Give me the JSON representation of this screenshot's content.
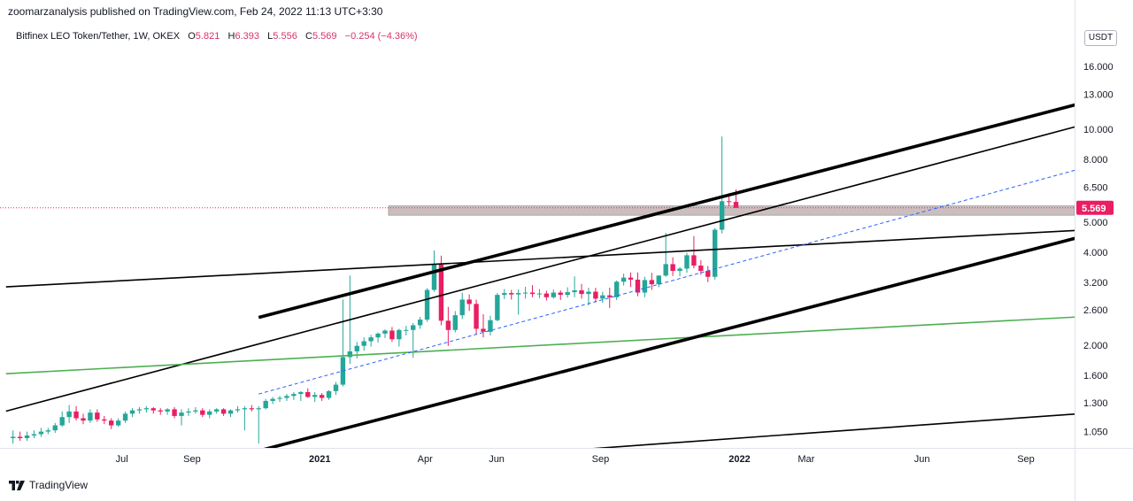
{
  "publisher_line": "zoomarzanalysis published on TradingView.com, Feb 24, 2022 11:13 UTC+3:30",
  "legend": {
    "symbol": "Bitfinex LEO Token/Tether, 1W, OKEX",
    "open_label": "O",
    "open": "5.821",
    "high_label": "H",
    "high": "6.393",
    "low_label": "L",
    "low": "5.556",
    "close_label": "C",
    "close": "5.569",
    "change": "−0.254 (−4.36%)"
  },
  "currency": "USDT",
  "footer_brand": "TradingView",
  "colors": {
    "up": "#26a69a",
    "down": "#e91e63",
    "green_line": "#4caf50",
    "dashed_line": "#2962ff",
    "zone": "#b8a9a9",
    "price_tag": "#e91e63"
  },
  "chart_data": {
    "type": "candlestick",
    "y_scale": "log",
    "ylim": [
      0.93,
      21.8
    ],
    "y_ticks": [
      "16.000",
      "13.000",
      "10.000",
      "8.000",
      "6.500",
      "5.000",
      "4.000",
      "3.200",
      "2.600",
      "2.000",
      "1.600",
      "1.300",
      "1.050"
    ],
    "x_ticks": [
      "Jul",
      "Sep",
      "2021",
      "Apr",
      "Jun",
      "Sep",
      "2022",
      "Mar",
      "Jun",
      "Sep"
    ],
    "x_ticks_bold": [
      "2021",
      "2022"
    ],
    "last_price": "5.569",
    "resistance_zone": [
      5.27,
      5.65
    ],
    "candles": [
      {
        "o": 1.0,
        "h": 1.06,
        "l": 0.96,
        "c": 1.01
      },
      {
        "o": 1.01,
        "h": 1.05,
        "l": 0.98,
        "c": 1.0
      },
      {
        "o": 1.0,
        "h": 1.05,
        "l": 0.98,
        "c": 1.02
      },
      {
        "o": 1.02,
        "h": 1.06,
        "l": 1.0,
        "c": 1.03
      },
      {
        "o": 1.03,
        "h": 1.08,
        "l": 1.01,
        "c": 1.05
      },
      {
        "o": 1.05,
        "h": 1.08,
        "l": 1.03,
        "c": 1.06
      },
      {
        "o": 1.06,
        "h": 1.12,
        "l": 1.04,
        "c": 1.1
      },
      {
        "o": 1.1,
        "h": 1.22,
        "l": 1.09,
        "c": 1.17
      },
      {
        "o": 1.17,
        "h": 1.28,
        "l": 1.12,
        "c": 1.22
      },
      {
        "o": 1.22,
        "h": 1.27,
        "l": 1.14,
        "c": 1.16
      },
      {
        "o": 1.16,
        "h": 1.2,
        "l": 1.11,
        "c": 1.14
      },
      {
        "o": 1.14,
        "h": 1.24,
        "l": 1.12,
        "c": 1.21
      },
      {
        "o": 1.21,
        "h": 1.24,
        "l": 1.13,
        "c": 1.15
      },
      {
        "o": 1.15,
        "h": 1.18,
        "l": 1.11,
        "c": 1.14
      },
      {
        "o": 1.14,
        "h": 1.16,
        "l": 1.07,
        "c": 1.1
      },
      {
        "o": 1.1,
        "h": 1.16,
        "l": 1.09,
        "c": 1.14
      },
      {
        "o": 1.14,
        "h": 1.22,
        "l": 1.12,
        "c": 1.2
      },
      {
        "o": 1.2,
        "h": 1.25,
        "l": 1.17,
        "c": 1.23
      },
      {
        "o": 1.23,
        "h": 1.26,
        "l": 1.2,
        "c": 1.24
      },
      {
        "o": 1.24,
        "h": 1.27,
        "l": 1.21,
        "c": 1.25
      },
      {
        "o": 1.25,
        "h": 1.26,
        "l": 1.2,
        "c": 1.23
      },
      {
        "o": 1.23,
        "h": 1.25,
        "l": 1.19,
        "c": 1.22
      },
      {
        "o": 1.22,
        "h": 1.25,
        "l": 1.19,
        "c": 1.24
      },
      {
        "o": 1.24,
        "h": 1.26,
        "l": 1.16,
        "c": 1.18
      },
      {
        "o": 1.18,
        "h": 1.24,
        "l": 1.1,
        "c": 1.21
      },
      {
        "o": 1.21,
        "h": 1.25,
        "l": 1.18,
        "c": 1.22
      },
      {
        "o": 1.22,
        "h": 1.26,
        "l": 1.2,
        "c": 1.23
      },
      {
        "o": 1.23,
        "h": 1.25,
        "l": 1.17,
        "c": 1.19
      },
      {
        "o": 1.19,
        "h": 1.24,
        "l": 1.16,
        "c": 1.22
      },
      {
        "o": 1.22,
        "h": 1.25,
        "l": 1.2,
        "c": 1.24
      },
      {
        "o": 1.24,
        "h": 1.25,
        "l": 1.18,
        "c": 1.2
      },
      {
        "o": 1.2,
        "h": 1.24,
        "l": 1.17,
        "c": 1.23
      },
      {
        "o": 1.23,
        "h": 1.27,
        "l": 1.21,
        "c": 1.24
      },
      {
        "o": 1.24,
        "h": 1.27,
        "l": 1.06,
        "c": 1.25
      },
      {
        "o": 1.25,
        "h": 1.28,
        "l": 1.22,
        "c": 1.24
      },
      {
        "o": 1.24,
        "h": 1.27,
        "l": 0.96,
        "c": 1.25
      },
      {
        "o": 1.25,
        "h": 1.34,
        "l": 1.24,
        "c": 1.32
      },
      {
        "o": 1.32,
        "h": 1.36,
        "l": 1.29,
        "c": 1.34
      },
      {
        "o": 1.34,
        "h": 1.37,
        "l": 1.31,
        "c": 1.35
      },
      {
        "o": 1.35,
        "h": 1.39,
        "l": 1.32,
        "c": 1.37
      },
      {
        "o": 1.37,
        "h": 1.41,
        "l": 1.33,
        "c": 1.39
      },
      {
        "o": 1.39,
        "h": 1.42,
        "l": 1.32,
        "c": 1.41
      },
      {
        "o": 1.41,
        "h": 1.45,
        "l": 1.35,
        "c": 1.36
      },
      {
        "o": 1.36,
        "h": 1.41,
        "l": 1.31,
        "c": 1.38
      },
      {
        "o": 1.38,
        "h": 1.4,
        "l": 1.32,
        "c": 1.35
      },
      {
        "o": 1.35,
        "h": 1.43,
        "l": 1.33,
        "c": 1.42
      },
      {
        "o": 1.42,
        "h": 1.52,
        "l": 1.38,
        "c": 1.49
      },
      {
        "o": 1.49,
        "h": 2.81,
        "l": 1.47,
        "c": 1.83
      },
      {
        "o": 1.83,
        "h": 3.36,
        "l": 1.74,
        "c": 1.91
      },
      {
        "o": 1.91,
        "h": 2.05,
        "l": 1.81,
        "c": 1.99
      },
      {
        "o": 1.99,
        "h": 2.12,
        "l": 1.92,
        "c": 2.06
      },
      {
        "o": 2.06,
        "h": 2.16,
        "l": 1.98,
        "c": 2.12
      },
      {
        "o": 2.12,
        "h": 2.2,
        "l": 2.04,
        "c": 2.18
      },
      {
        "o": 2.18,
        "h": 2.25,
        "l": 2.11,
        "c": 2.23
      },
      {
        "o": 2.23,
        "h": 2.29,
        "l": 2.05,
        "c": 2.09
      },
      {
        "o": 2.09,
        "h": 2.26,
        "l": 1.98,
        "c": 2.24
      },
      {
        "o": 2.24,
        "h": 2.31,
        "l": 2.15,
        "c": 2.24
      },
      {
        "o": 2.24,
        "h": 2.36,
        "l": 1.82,
        "c": 2.32
      },
      {
        "o": 2.32,
        "h": 2.47,
        "l": 2.26,
        "c": 2.42
      },
      {
        "o": 2.42,
        "h": 3.06,
        "l": 2.38,
        "c": 3.02
      },
      {
        "o": 3.02,
        "h": 4.05,
        "l": 2.98,
        "c": 3.65
      },
      {
        "o": 3.65,
        "h": 3.9,
        "l": 2.32,
        "c": 2.4
      },
      {
        "o": 2.4,
        "h": 2.66,
        "l": 1.99,
        "c": 2.24
      },
      {
        "o": 2.24,
        "h": 2.58,
        "l": 2.2,
        "c": 2.5
      },
      {
        "o": 2.5,
        "h": 2.96,
        "l": 2.43,
        "c": 2.81
      },
      {
        "o": 2.81,
        "h": 2.92,
        "l": 2.58,
        "c": 2.72
      },
      {
        "o": 2.72,
        "h": 2.81,
        "l": 2.16,
        "c": 2.26
      },
      {
        "o": 2.26,
        "h": 2.52,
        "l": 2.12,
        "c": 2.21
      },
      {
        "o": 2.21,
        "h": 2.49,
        "l": 2.15,
        "c": 2.41
      },
      {
        "o": 2.41,
        "h": 2.95,
        "l": 2.39,
        "c": 2.91
      },
      {
        "o": 2.91,
        "h": 3.04,
        "l": 2.82,
        "c": 2.95
      },
      {
        "o": 2.95,
        "h": 3.02,
        "l": 2.81,
        "c": 2.92
      },
      {
        "o": 2.92,
        "h": 3.03,
        "l": 2.51,
        "c": 2.95
      },
      {
        "o": 2.95,
        "h": 3.09,
        "l": 2.83,
        "c": 2.96
      },
      {
        "o": 2.96,
        "h": 3.13,
        "l": 2.86,
        "c": 2.93
      },
      {
        "o": 2.93,
        "h": 3.04,
        "l": 2.84,
        "c": 2.94
      },
      {
        "o": 2.94,
        "h": 3.0,
        "l": 2.79,
        "c": 2.86
      },
      {
        "o": 2.86,
        "h": 3.03,
        "l": 2.83,
        "c": 2.96
      },
      {
        "o": 2.96,
        "h": 3.01,
        "l": 2.8,
        "c": 2.91
      },
      {
        "o": 2.91,
        "h": 3.08,
        "l": 2.85,
        "c": 2.97
      },
      {
        "o": 2.97,
        "h": 3.34,
        "l": 2.86,
        "c": 3.01
      },
      {
        "o": 3.01,
        "h": 3.16,
        "l": 2.83,
        "c": 2.93
      },
      {
        "o": 2.93,
        "h": 3.07,
        "l": 2.69,
        "c": 2.98
      },
      {
        "o": 2.98,
        "h": 3.07,
        "l": 2.75,
        "c": 2.83
      },
      {
        "o": 2.83,
        "h": 2.98,
        "l": 2.74,
        "c": 2.9
      },
      {
        "o": 2.9,
        "h": 3.07,
        "l": 2.64,
        "c": 2.86
      },
      {
        "o": 2.86,
        "h": 3.24,
        "l": 2.8,
        "c": 3.21
      },
      {
        "o": 3.21,
        "h": 3.41,
        "l": 3.12,
        "c": 3.31
      },
      {
        "o": 3.31,
        "h": 3.44,
        "l": 3.09,
        "c": 3.26
      },
      {
        "o": 3.26,
        "h": 3.44,
        "l": 2.88,
        "c": 2.96
      },
      {
        "o": 2.96,
        "h": 3.33,
        "l": 2.86,
        "c": 3.25
      },
      {
        "o": 3.25,
        "h": 3.43,
        "l": 3.02,
        "c": 3.15
      },
      {
        "o": 3.15,
        "h": 3.37,
        "l": 3.08,
        "c": 3.36
      },
      {
        "o": 3.36,
        "h": 4.62,
        "l": 3.33,
        "c": 3.66
      },
      {
        "o": 3.66,
        "h": 3.85,
        "l": 3.35,
        "c": 3.48
      },
      {
        "o": 3.48,
        "h": 3.58,
        "l": 3.34,
        "c": 3.54
      },
      {
        "o": 3.54,
        "h": 3.98,
        "l": 3.43,
        "c": 3.91
      },
      {
        "o": 3.91,
        "h": 4.51,
        "l": 3.55,
        "c": 3.62
      },
      {
        "o": 3.62,
        "h": 3.77,
        "l": 3.38,
        "c": 3.48
      },
      {
        "o": 3.48,
        "h": 3.61,
        "l": 3.2,
        "c": 3.33
      },
      {
        "o": 3.33,
        "h": 4.79,
        "l": 3.26,
        "c": 4.73
      },
      {
        "o": 4.73,
        "h": 9.48,
        "l": 4.6,
        "c": 5.85
      },
      {
        "o": 5.85,
        "h": 6.21,
        "l": 5.63,
        "c": 5.82
      },
      {
        "o": 5.821,
        "h": 6.393,
        "l": 5.556,
        "c": 5.569
      }
    ],
    "drawings": [
      {
        "kind": "trend",
        "style": "thin-black",
        "p1": [
          -1,
          1.223
        ],
        "p2": [
          206,
          21.8
        ]
      },
      {
        "kind": "trend",
        "style": "thin-black",
        "p1": [
          -1,
          0.676
        ],
        "p2": [
          206,
          1.47
        ]
      },
      {
        "kind": "trend",
        "style": "thin-black",
        "p1": [
          -1,
          3.09
        ],
        "p2": [
          206,
          5.47
        ]
      },
      {
        "kind": "trend",
        "style": "thin-green",
        "p1": [
          -1,
          1.617
        ],
        "p2": [
          206,
          2.87
        ]
      },
      {
        "kind": "trend",
        "style": "thick-black",
        "p1": [
          35,
          2.46
        ],
        "p2": [
          179,
          17.5
        ]
      },
      {
        "kind": "trend",
        "style": "thick-black",
        "p1": [
          35,
          0.91
        ],
        "p2": [
          179,
          6.47
        ]
      },
      {
        "kind": "trend",
        "style": "dashed-blue",
        "p1": [
          35,
          1.39
        ],
        "p2": [
          179,
          10.97
        ]
      }
    ]
  }
}
